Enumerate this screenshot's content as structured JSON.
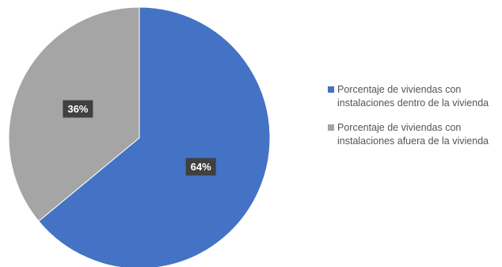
{
  "chart_data": {
    "type": "pie",
    "categories": [
      "Porcentaje de viviendas con instalaciones dentro de la vivienda",
      "Porcentaje de viviendas con instalaciones afuera de la vivienda"
    ],
    "values": [
      64,
      36
    ],
    "data_labels": [
      "64%",
      "36%"
    ],
    "colors": [
      "#4472c4",
      "#a5a5a5"
    ],
    "start_angle_deg": 0,
    "direction": "clockwise",
    "legend_position": "right"
  }
}
